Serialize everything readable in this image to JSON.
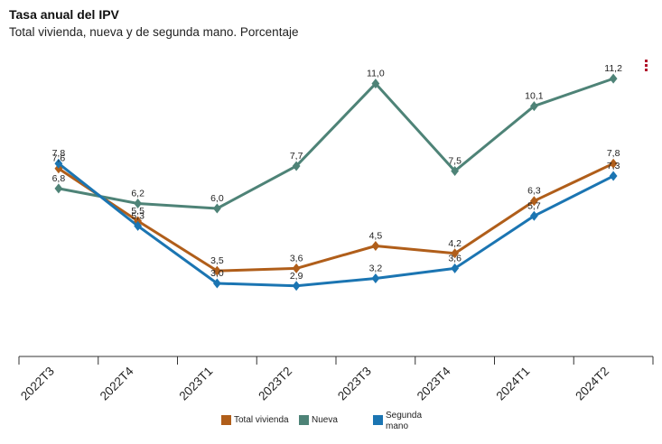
{
  "header": {
    "title": "Tasa anual del IPV",
    "subtitle": "Total vivienda, nueva y de segunda mano. Porcentaje"
  },
  "icons": {
    "menu": "kebab-menu-icon"
  },
  "colors": {
    "total": "#b05e1a",
    "nueva": "#4e8377",
    "segunda": "#1b75b2",
    "menu": "#b0122a"
  },
  "chart_data": {
    "type": "line",
    "title": "Tasa anual del IPV",
    "subtitle": "Total vivienda, nueva y de segunda mano. Porcentaje",
    "categories": [
      "2022T3",
      "2022T4",
      "2023T1",
      "2023T2",
      "2023T3",
      "2023T4",
      "2024T1",
      "2024T2"
    ],
    "series": [
      {
        "name": "Total vivienda",
        "values": [
          7.6,
          5.5,
          3.5,
          3.6,
          4.5,
          4.2,
          6.3,
          7.8
        ],
        "labels": [
          "7,6",
          "5,5",
          "3,5",
          "3,6",
          "4,5",
          "4,2",
          "6,3",
          "7,8"
        ]
      },
      {
        "name": "Nueva",
        "values": [
          6.8,
          6.2,
          6.0,
          7.7,
          11.0,
          7.5,
          10.1,
          11.2
        ],
        "labels": [
          "6,8",
          "6,2",
          "6,0",
          "7,7",
          "11,0",
          "7,5",
          "10,1",
          "11,2"
        ]
      },
      {
        "name": "Segunda mano",
        "values": [
          7.8,
          5.3,
          3.0,
          2.9,
          3.2,
          3.6,
          5.7,
          7.3
        ],
        "labels": [
          "7,8",
          "5,3",
          "3,0",
          "2,9",
          "3,2",
          "3,6",
          "5,7",
          "7,3"
        ]
      }
    ],
    "ylim": [
      0,
      12
    ],
    "grid": false,
    "legend_position": "bottom"
  },
  "legend": [
    {
      "label": "Total vivienda"
    },
    {
      "label": "Nueva"
    },
    {
      "label": "Segunda mano"
    }
  ]
}
